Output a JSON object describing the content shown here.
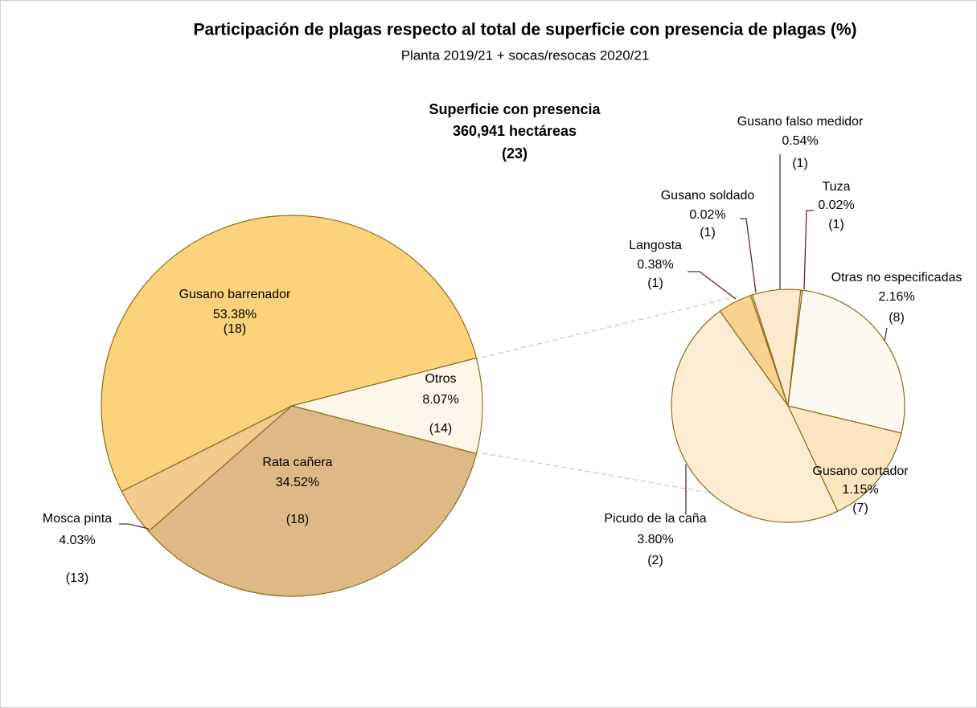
{
  "chart_data": [
    {
      "type": "pie",
      "title": "Participación de plagas respecto al total de superficie con presencia de plagas (%)",
      "subtitle": "Planta 2019/21 + socas/resocas 2020/21",
      "annotation": [
        "Superficie con presencia",
        "360,941 hectáreas",
        "(23)"
      ],
      "categories": [
        "Gusano barrenador",
        "Otros",
        "Rata cañera",
        "Mosca pinta"
      ],
      "values": [
        53.38,
        8.07,
        34.52,
        4.03
      ],
      "value_labels": [
        "53.38%",
        "8.07%",
        "34.52%",
        "4.03%"
      ],
      "counts": [
        "(18)",
        "(14)",
        "(18)",
        "(13)"
      ],
      "colors": [
        "#fdd27c",
        "#fef6e8",
        "#ddba85",
        "#f4c98c"
      ]
    },
    {
      "type": "pie",
      "categories": [
        "Gusano cortador",
        "Picudo de la caña",
        "Langosta",
        "Gusano soldado",
        "Gusano falso medidor",
        "Tuza",
        "Otras no especificadas"
      ],
      "values": [
        1.15,
        3.8,
        0.38,
        0.02,
        0.54,
        0.02,
        2.16
      ],
      "value_labels": [
        "1.15%",
        "3.80%",
        "0.38%",
        "0.02%",
        "0.54%",
        "0.02%",
        "2.16%"
      ],
      "counts": [
        "(7)",
        "(2)",
        "(1)",
        "(1)",
        "(1)",
        "(1)",
        "(8)"
      ],
      "colors": [
        "#fde5c0",
        "#feedd3",
        "#f9d290",
        "#fbdca8",
        "#fde9cb",
        "#fbdca8",
        "#fffaf1"
      ]
    }
  ]
}
